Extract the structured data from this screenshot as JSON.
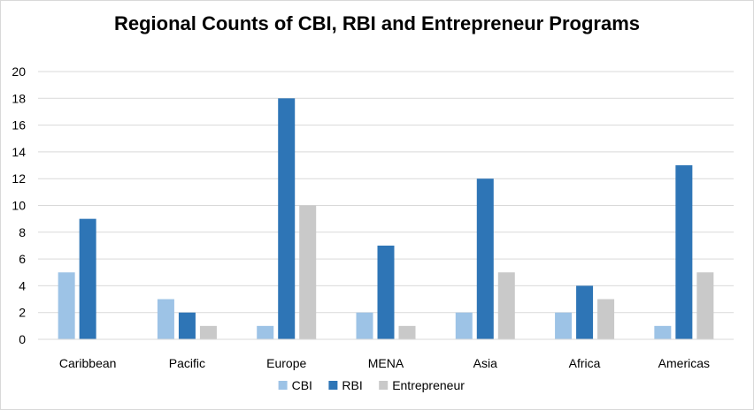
{
  "chart_data": {
    "type": "bar",
    "title": "Regional Counts of CBI, RBI and Entrepreneur Programs",
    "xlabel": "",
    "ylabel": "",
    "categories": [
      "Caribbean",
      "Pacific",
      "Europe",
      "MENA",
      "Asia",
      "Africa",
      "Americas"
    ],
    "series": [
      {
        "name": "CBI",
        "color": "#9dc3e6",
        "values": [
          5,
          3,
          1,
          2,
          2,
          2,
          1
        ]
      },
      {
        "name": "RBI",
        "color": "#2e75b6",
        "values": [
          9,
          2,
          18,
          7,
          12,
          4,
          13
        ]
      },
      {
        "name": "Entrepreneur",
        "color": "#c9c9c9",
        "values": [
          0,
          1,
          10,
          1,
          5,
          3,
          5
        ]
      }
    ],
    "ylim": [
      0,
      20
    ],
    "yticks": [
      0,
      2,
      4,
      6,
      8,
      10,
      12,
      14,
      16,
      18,
      20
    ],
    "grid": true,
    "legend_position": "bottom"
  }
}
